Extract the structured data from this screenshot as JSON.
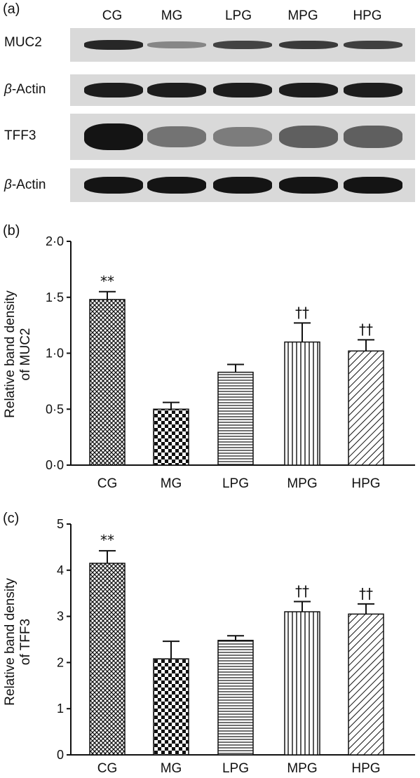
{
  "blot": {
    "panel_label": "(a)",
    "lanes": [
      "CG",
      "MG",
      "LPG",
      "MPG",
      "HPG"
    ],
    "rows": [
      {
        "label_prefix": "",
        "label_main": "MUC2",
        "intensity": [
          0.85,
          0.35,
          0.7,
          0.75,
          0.72
        ]
      },
      {
        "label_prefix": "β",
        "label_main": "-Actin",
        "intensity": [
          0.9,
          0.9,
          0.9,
          0.9,
          0.9
        ]
      },
      {
        "label_prefix": "",
        "label_main": "TFF3",
        "intensity": [
          0.95,
          0.45,
          0.4,
          0.55,
          0.55
        ]
      },
      {
        "label_prefix": "β",
        "label_main": "-Actin",
        "intensity": [
          0.95,
          0.95,
          0.95,
          0.95,
          0.95
        ]
      }
    ]
  },
  "chart_data": [
    {
      "type": "bar",
      "panel_label": "(b)",
      "categories": [
        "CG",
        "MG",
        "LPG",
        "MPG",
        "HPG"
      ],
      "values": [
        1.48,
        0.5,
        0.83,
        1.1,
        1.02
      ],
      "errors": [
        0.07,
        0.06,
        0.07,
        0.17,
        0.1
      ],
      "significance": [
        "**",
        "",
        "",
        "††",
        "††"
      ],
      "patterns": [
        "crosshatch",
        "checker",
        "horizontal",
        "vertical",
        "diagonal"
      ],
      "ylabel_line1": "Relative band density",
      "ylabel_line2": "of MUC2",
      "ylim": [
        0,
        2
      ],
      "yticks": [
        "0·0",
        "0·5",
        "1·0",
        "1·5",
        "2·0"
      ],
      "ytick_values": [
        0,
        0.5,
        1,
        1.5,
        2
      ]
    },
    {
      "type": "bar",
      "panel_label": "(c)",
      "categories": [
        "CG",
        "MG",
        "LPG",
        "MPG",
        "HPG"
      ],
      "values": [
        4.15,
        2.08,
        2.48,
        3.1,
        3.05
      ],
      "errors": [
        0.27,
        0.38,
        0.1,
        0.22,
        0.22
      ],
      "significance": [
        "**",
        "",
        "",
        "††",
        "††"
      ],
      "patterns": [
        "crosshatch",
        "checker",
        "horizontal",
        "vertical",
        "diagonal"
      ],
      "ylabel_line1": "Relative band density",
      "ylabel_line2": "of TFF3",
      "ylim": [
        0,
        5
      ],
      "yticks": [
        "0",
        "1",
        "2",
        "3",
        "4",
        "5"
      ],
      "ytick_values": [
        0,
        1,
        2,
        3,
        4,
        5
      ]
    }
  ]
}
